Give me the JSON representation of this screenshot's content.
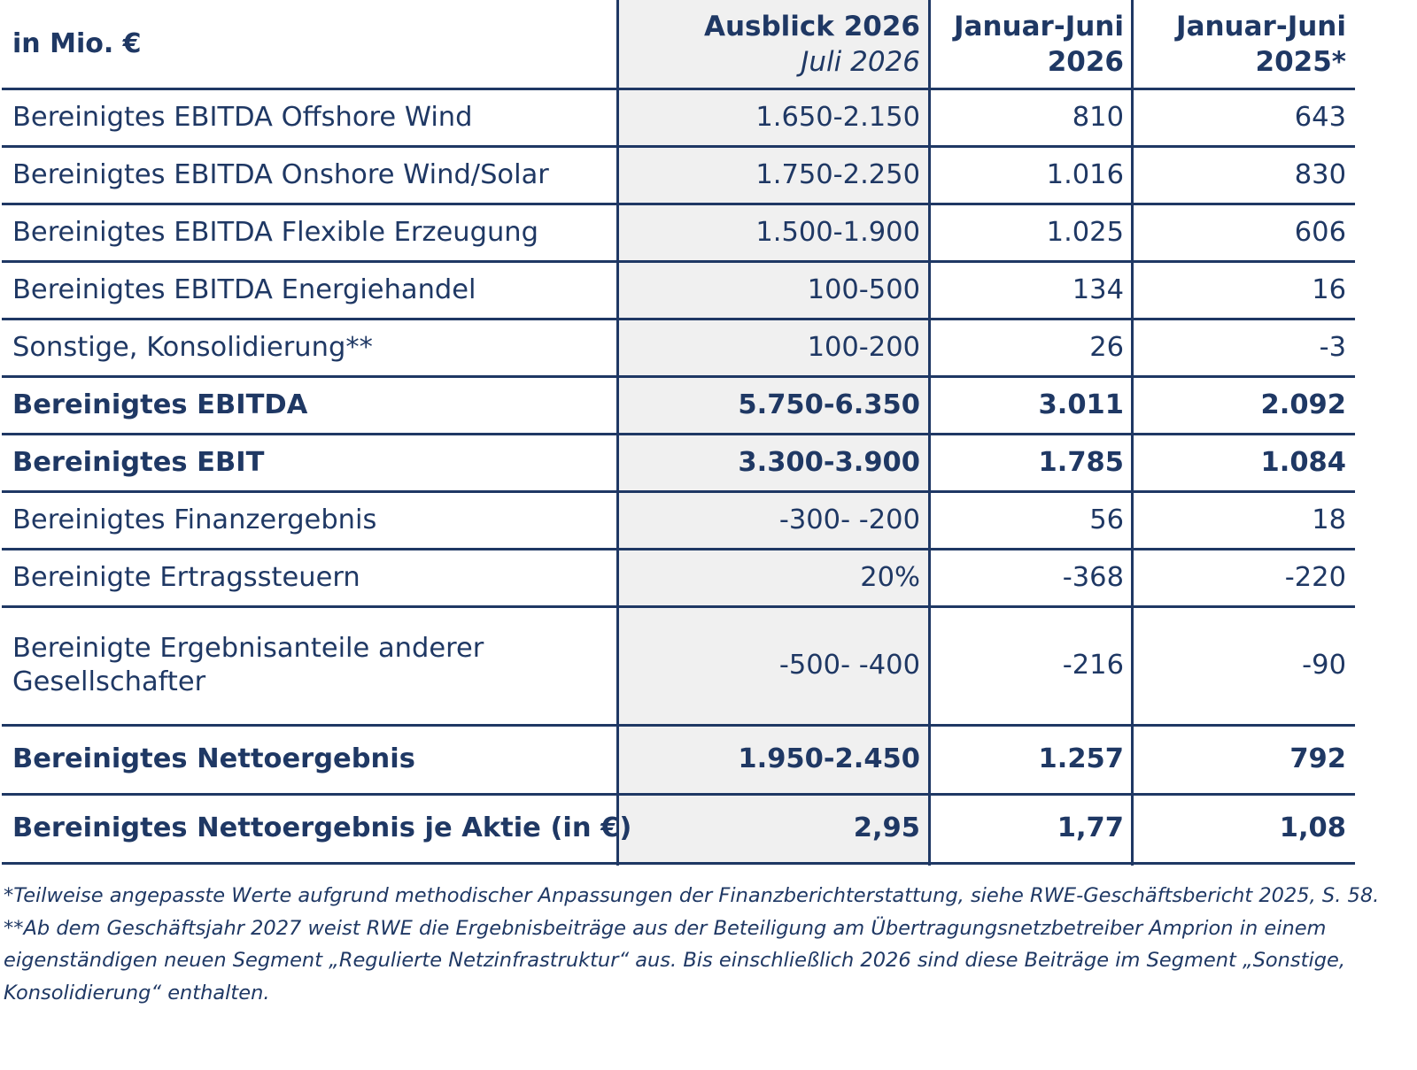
{
  "header": {
    "unit_label": "in Mio. €",
    "col_outlook_title": "Ausblick 2026",
    "col_outlook_sub": "Juli 2026",
    "col_h1_2026_line1": "Januar-Juni",
    "col_h1_2026_line2": "2026",
    "col_h1_2025_line1": "Januar-Juni",
    "col_h1_2025_line2": "2025*"
  },
  "rows": [
    {
      "label": "Bereinigtes EBITDA Offshore Wind",
      "outlook": "1.650-2.150",
      "h1_2026": "810",
      "h1_2025": "643"
    },
    {
      "label": "Bereinigtes EBITDA Onshore Wind/Solar",
      "outlook": "1.750-2.250",
      "h1_2026": "1.016",
      "h1_2025": "830"
    },
    {
      "label": "Bereinigtes EBITDA Flexible Erzeugung",
      "outlook": "1.500-1.900",
      "h1_2026": "1.025",
      "h1_2025": "606"
    },
    {
      "label": "Bereinigtes EBITDA Energiehandel",
      "outlook": "100-500",
      "h1_2026": "134",
      "h1_2025": "16"
    },
    {
      "label": "Sonstige, Konsolidierung**",
      "outlook": "100-200",
      "h1_2026": "26",
      "h1_2025": "-3"
    },
    {
      "label": "Bereinigtes EBITDA",
      "outlook": "5.750-6.350",
      "h1_2026": "3.011",
      "h1_2025": "2.092"
    },
    {
      "label": "Bereinigtes EBIT",
      "outlook": "3.300-3.900",
      "h1_2026": "1.785",
      "h1_2025": "1.084"
    },
    {
      "label": "Bereinigtes Finanzergebnis",
      "outlook": "-300- -200",
      "h1_2026": "56",
      "h1_2025": "18"
    },
    {
      "label": "Bereinigte Ertragssteuern",
      "outlook": "20%",
      "h1_2026": "-368",
      "h1_2025": "-220"
    },
    {
      "label": "Bereinigte Ergebnisanteile anderer Gesellschafter",
      "outlook": "-500- -400",
      "h1_2026": "-216",
      "h1_2025": "-90"
    },
    {
      "label": "Bereinigtes Nettoergebnis",
      "outlook": "1.950-2.450",
      "h1_2026": "1.257",
      "h1_2025": "792"
    },
    {
      "label": "Bereinigtes Nettoergebnis je Aktie (in €)",
      "outlook": "2,95",
      "h1_2026": "1,77",
      "h1_2025": "1,08"
    }
  ],
  "footnotes": {
    "note1": "*Teilweise angepasste Werte aufgrund methodischer Anpassungen der Finanzberichterstattung, siehe RWE-Geschäftsbericht 2025, S. 58.",
    "note2": "**Ab dem Geschäftsjahr 2027 weist RWE die Ergebnisbeiträge aus der Beteiligung am Übertragungsnetzbetreiber Amprion in einem eigenständigen neuen Segment „Regulierte Netzinfrastruktur“ aus. Bis einschließlich 2026 sind diese Beiträge im Segment „Sonstige, Konsolidierung“ enthalten."
  },
  "colors": {
    "text": "#1f3864",
    "rule": "#1f3864",
    "highlight_column_bg": "#f0f0f0"
  }
}
